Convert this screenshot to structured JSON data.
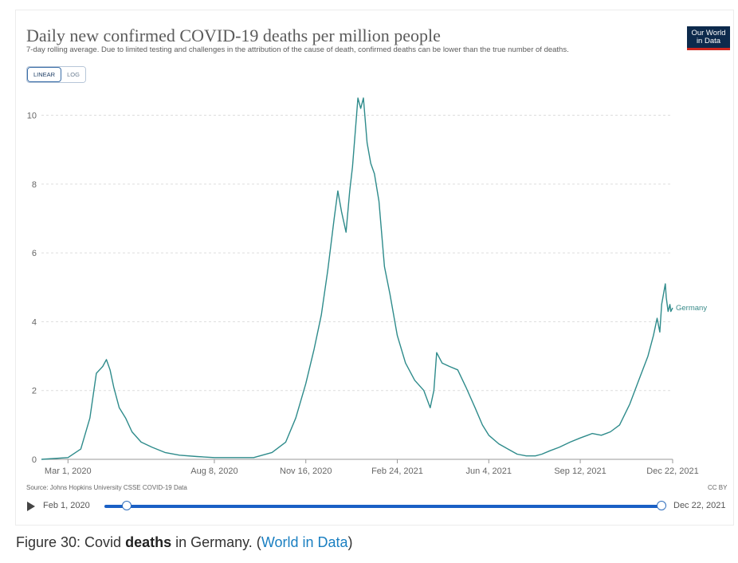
{
  "header": {
    "title": "Daily new confirmed COVID-19 deaths per million people",
    "subtitle": "7-day rolling average. Due to limited testing and challenges in the attribution of the cause of death, confirmed deaths can be lower than the true number of deaths.",
    "logo_line1": "Our World",
    "logo_line2": "in Data"
  },
  "controls": {
    "linear_label": "LINEAR",
    "log_label": "LOG"
  },
  "footer": {
    "source": "Source: Johns Hopkins University CSSE COVID-19 Data",
    "license": "CC BY"
  },
  "timeline": {
    "start_label": "Feb 1, 2020",
    "end_label": "Dec 22, 2021"
  },
  "caption": {
    "prefix": "Figure 30: Covid ",
    "bold": "deaths",
    "middle": " in Germany. (",
    "link": "World in Data",
    "suffix": ")"
  },
  "colors": {
    "series": "#2e8b8b",
    "grid": "#dddddd",
    "slider": "#1a60c5"
  },
  "chart_data": {
    "type": "line",
    "title": "Daily new confirmed COVID-19 deaths per million people",
    "subtitle": "7-day rolling average. Due to limited testing and challenges in the attribution of the cause of death, confirmed deaths can be lower than the true number of deaths.",
    "xlabel": "",
    "ylabel": "",
    "x_range": [
      "2020-02-01",
      "2021-12-22"
    ],
    "ylim": [
      0,
      10.8
    ],
    "y_ticks": [
      0,
      2,
      4,
      6,
      8,
      10
    ],
    "x_ticks": [
      {
        "date": "2020-03-01",
        "label": "Mar 1, 2020"
      },
      {
        "date": "2020-08-08",
        "label": "Aug 8, 2020"
      },
      {
        "date": "2020-11-16",
        "label": "Nov 16, 2020"
      },
      {
        "date": "2021-02-24",
        "label": "Feb 24, 2021"
      },
      {
        "date": "2021-06-04",
        "label": "Jun 4, 2021"
      },
      {
        "date": "2021-09-12",
        "label": "Sep 12, 2021"
      },
      {
        "date": "2021-12-22",
        "label": "Dec 22, 2021"
      }
    ],
    "grid": true,
    "legend": "end-of-line label",
    "series": [
      {
        "name": "Germany",
        "x": [
          "2020-02-01",
          "2020-03-01",
          "2020-03-15",
          "2020-03-25",
          "2020-04-01",
          "2020-04-08",
          "2020-04-12",
          "2020-04-16",
          "2020-04-20",
          "2020-04-26",
          "2020-05-03",
          "2020-05-10",
          "2020-05-20",
          "2020-06-01",
          "2020-06-15",
          "2020-07-01",
          "2020-07-20",
          "2020-08-08",
          "2020-09-01",
          "2020-09-20",
          "2020-10-10",
          "2020-10-25",
          "2020-11-05",
          "2020-11-16",
          "2020-11-25",
          "2020-12-03",
          "2020-12-10",
          "2020-12-17",
          "2020-12-21",
          "2020-12-25",
          "2020-12-30",
          "2021-01-03",
          "2021-01-06",
          "2021-01-09",
          "2021-01-12",
          "2021-01-15",
          "2021-01-18",
          "2021-01-22",
          "2021-01-26",
          "2021-01-30",
          "2021-02-04",
          "2021-02-10",
          "2021-02-16",
          "2021-02-24",
          "2021-03-05",
          "2021-03-15",
          "2021-03-25",
          "2021-04-01",
          "2021-04-05",
          "2021-04-08",
          "2021-04-14",
          "2021-04-22",
          "2021-05-01",
          "2021-05-10",
          "2021-05-20",
          "2021-05-28",
          "2021-06-04",
          "2021-06-15",
          "2021-06-25",
          "2021-07-05",
          "2021-07-15",
          "2021-07-25",
          "2021-08-01",
          "2021-08-10",
          "2021-08-20",
          "2021-09-01",
          "2021-09-12",
          "2021-09-20",
          "2021-09-25",
          "2021-10-05",
          "2021-10-15",
          "2021-10-25",
          "2021-11-05",
          "2021-11-15",
          "2021-11-25",
          "2021-12-01",
          "2021-12-05",
          "2021-12-08",
          "2021-12-10",
          "2021-12-12",
          "2021-12-14",
          "2021-12-15",
          "2021-12-17",
          "2021-12-19",
          "2021-12-20",
          "2021-12-22"
        ],
        "y": [
          0,
          0.05,
          0.3,
          1.2,
          2.5,
          2.7,
          2.9,
          2.6,
          2.1,
          1.5,
          1.2,
          0.8,
          0.5,
          0.35,
          0.2,
          0.12,
          0.08,
          0.05,
          0.05,
          0.05,
          0.2,
          0.5,
          1.2,
          2.2,
          3.2,
          4.2,
          5.5,
          7.0,
          7.8,
          7.2,
          6.6,
          7.8,
          8.5,
          9.5,
          10.5,
          10.2,
          10.5,
          9.2,
          8.6,
          8.3,
          7.5,
          5.6,
          4.8,
          3.6,
          2.8,
          2.3,
          2.0,
          1.5,
          2.0,
          3.1,
          2.8,
          2.7,
          2.6,
          2.1,
          1.5,
          1.0,
          0.7,
          0.45,
          0.3,
          0.15,
          0.1,
          0.1,
          0.15,
          0.25,
          0.35,
          0.5,
          0.62,
          0.7,
          0.75,
          0.7,
          0.8,
          1.0,
          1.6,
          2.3,
          3.0,
          3.6,
          4.1,
          3.7,
          4.5,
          4.8,
          5.1,
          4.7,
          4.3,
          4.5,
          4.3,
          4.4
        ]
      }
    ]
  }
}
